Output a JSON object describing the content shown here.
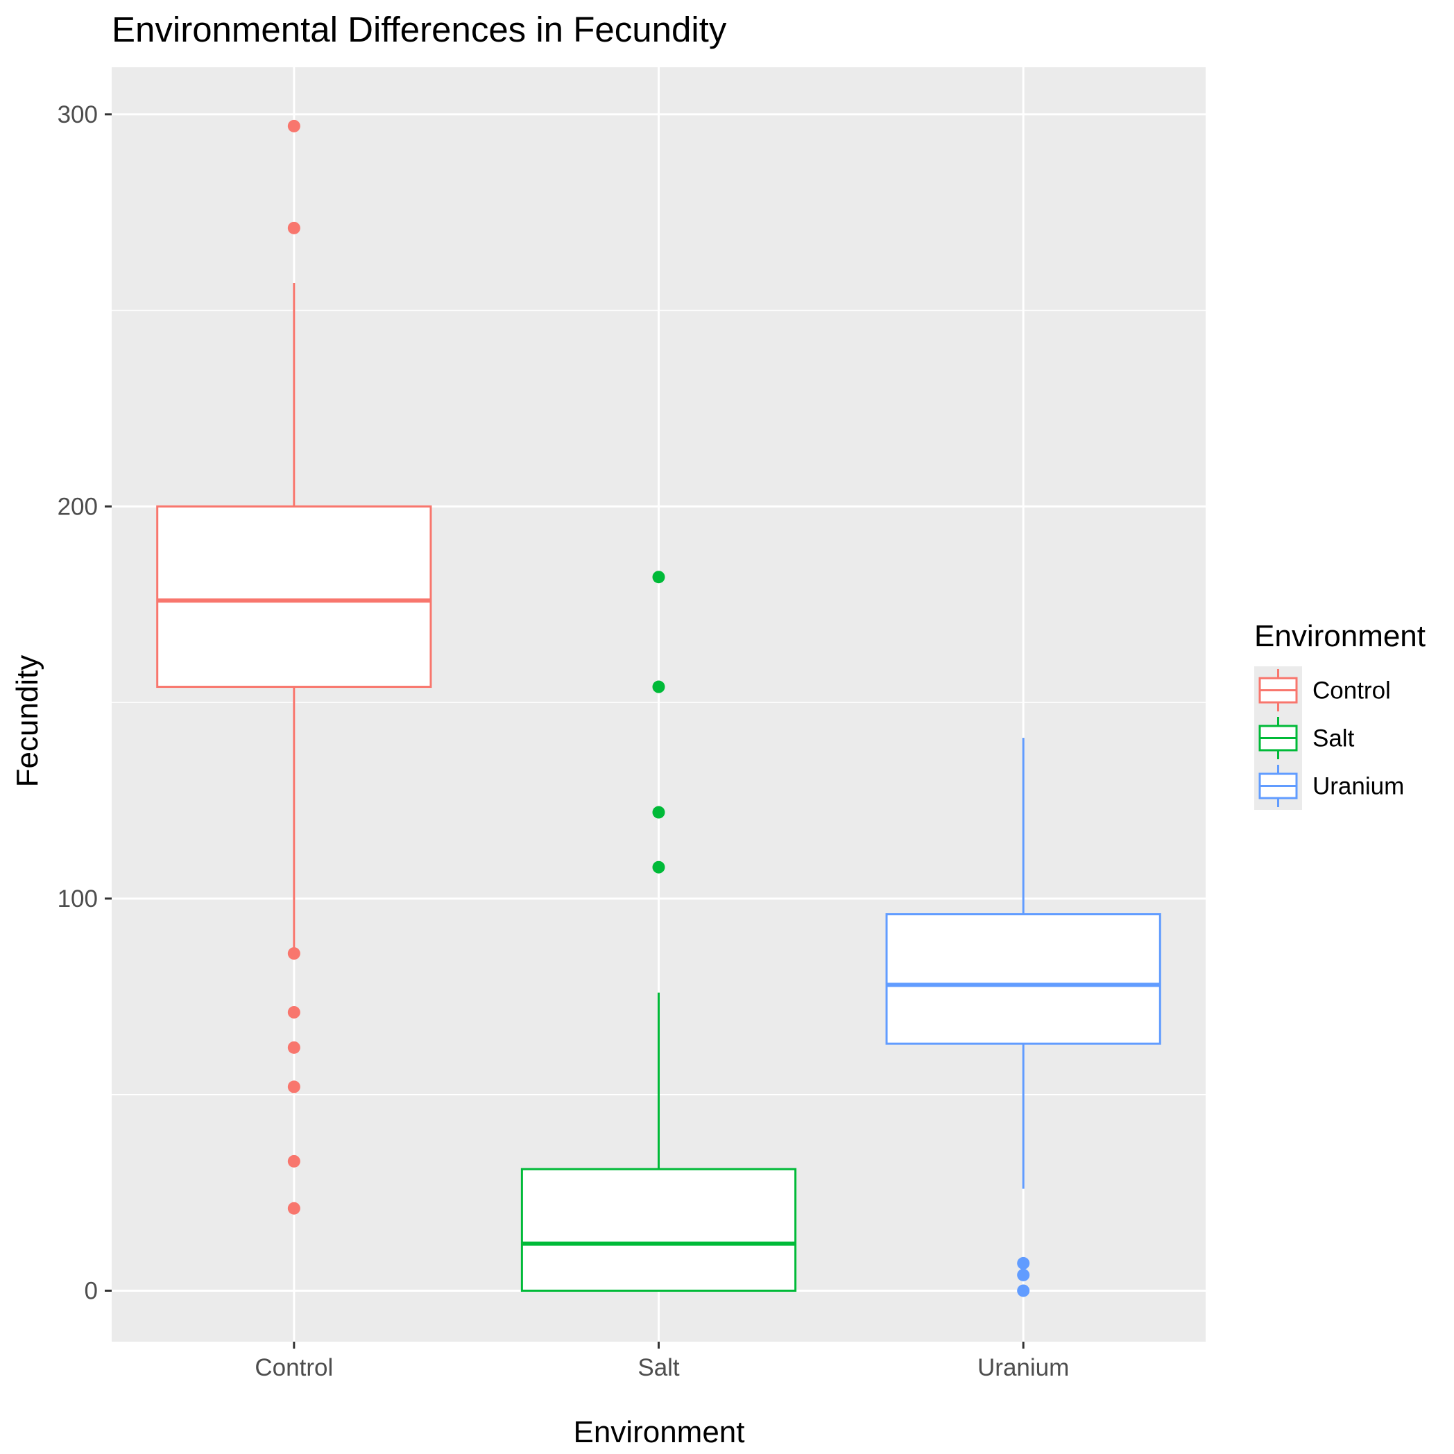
{
  "chart_data": {
    "type": "boxplot",
    "title": "Environmental Differences in Fecundity",
    "xlabel": "Environment",
    "ylabel": "Fecundity",
    "ylim": [
      -13,
      312
    ],
    "yticks": [
      0,
      100,
      200,
      300
    ],
    "grid": true,
    "legend": {
      "title": "Environment",
      "placement": "right",
      "entries": [
        "Control",
        "Salt",
        "Uranium"
      ]
    },
    "categories": [
      "Control",
      "Salt",
      "Uranium"
    ],
    "colors": {
      "Control": "#F8766D",
      "Salt": "#00BA38",
      "Uranium": "#619CFF",
      "panel": "#EBEBEB",
      "grid": "#FFFFFF",
      "text": "#4D4D4D"
    },
    "boxes": [
      {
        "name": "Control",
        "whisker_low": 86,
        "q1": 154,
        "median": 176,
        "q3": 200,
        "whisker_high": 257,
        "outliers": [
          297,
          271,
          86,
          71,
          62,
          52,
          33,
          21
        ]
      },
      {
        "name": "Salt",
        "whisker_low": 0,
        "q1": 0,
        "median": 12,
        "q3": 31,
        "whisker_high": 76,
        "outliers": [
          182,
          154,
          122,
          108
        ]
      },
      {
        "name": "Uranium",
        "whisker_low": 26,
        "q1": 63,
        "median": 78,
        "q3": 96,
        "whisker_high": 141,
        "outliers": [
          7,
          4,
          0
        ]
      }
    ]
  }
}
